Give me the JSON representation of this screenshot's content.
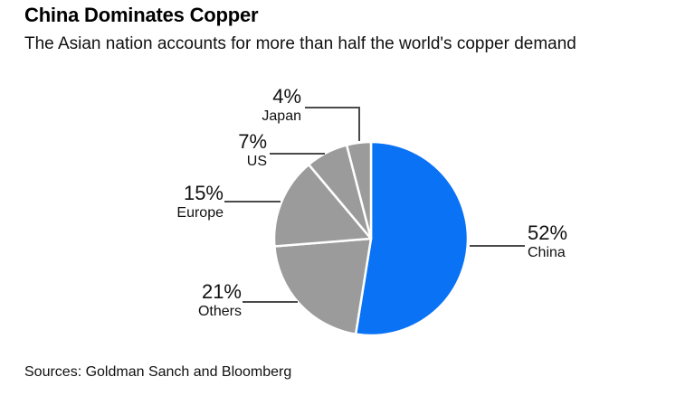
{
  "header": {
    "title": "China Dominates Copper",
    "subtitle": "The Asian nation accounts for more than half the world's copper demand"
  },
  "chart_data": {
    "type": "pie",
    "title": "China Dominates Copper",
    "subtitle": "The Asian nation accounts for more than half the world's copper demand",
    "unit": "%",
    "start_angle_deg": 0,
    "direction": "clockwise",
    "values_sum_shown": 99,
    "slices": [
      {
        "label": "China",
        "value": 52,
        "pct_label": "52%",
        "color": "#0a72f5"
      },
      {
        "label": "Others",
        "value": 21,
        "pct_label": "21%",
        "color": "#9b9b9b"
      },
      {
        "label": "Europe",
        "value": 15,
        "pct_label": "15%",
        "color": "#9b9b9b"
      },
      {
        "label": "US",
        "value": 7,
        "pct_label": "7%",
        "color": "#9b9b9b"
      },
      {
        "label": "Japan",
        "value": 4,
        "pct_label": "4%",
        "color": "#9b9b9b"
      }
    ],
    "accent_color": "#0a72f5",
    "muted_color": "#9b9b9b",
    "slice_border_color": "#ffffff",
    "leader_line_color": "#4a4a4a",
    "legend_position": "callout-labels"
  },
  "footer": {
    "source": "Sources: Goldman Sanch and Bloomberg"
  }
}
